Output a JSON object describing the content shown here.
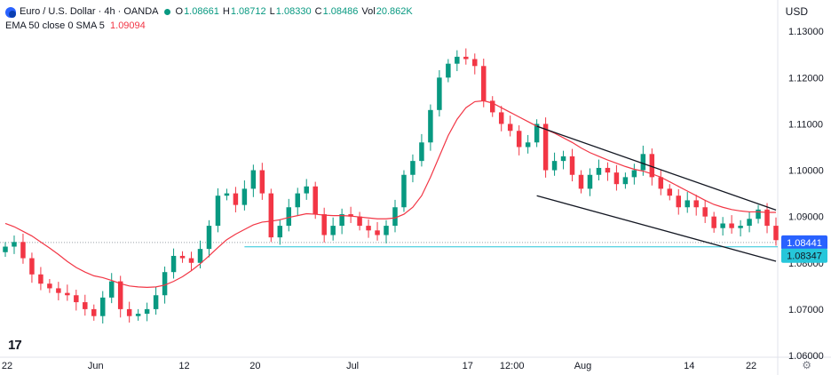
{
  "header": {
    "symbol": "Euro / U.S. Dollar · 4h · OANDA",
    "o_label": "O",
    "o_value": "1.08661",
    "h_label": "H",
    "h_value": "1.08712",
    "l_label": "L",
    "l_value": "1.08330",
    "c_label": "C",
    "c_value": "1.08486",
    "vol_label": "Vol",
    "vol_value": "20.862K",
    "indicator": "EMA 50 close 0 SMA 5",
    "indicator_value": "1.09094"
  },
  "currency": "USD",
  "colors": {
    "up": "#089981",
    "down": "#f23645",
    "ema": "#f23645",
    "channel": "#131722",
    "support": "#26c6da",
    "price_badge": "#2962ff",
    "support_badge": "#26c6da"
  },
  "chart_data": {
    "type": "candlestick",
    "symbol": "EURUSD",
    "timeframe": "4h",
    "x_ticks": [
      {
        "label": "22",
        "pos": 0
      },
      {
        "label": "Jun",
        "pos": 10
      },
      {
        "label": "12",
        "pos": 20
      },
      {
        "label": "20",
        "pos": 28
      },
      {
        "label": "Jul",
        "pos": 39
      },
      {
        "label": "17",
        "pos": 52
      },
      {
        "label": "12:00",
        "pos": 57
      },
      {
        "label": "Aug",
        "pos": 65
      },
      {
        "label": "14",
        "pos": 77
      },
      {
        "label": "22",
        "pos": 84
      }
    ],
    "y_ticks": [
      "1.06000",
      "1.07000",
      "1.08000",
      "1.09000",
      "1.10000",
      "1.11000",
      "1.12000",
      "1.13000"
    ],
    "ylim": [
      1.06,
      1.131
    ],
    "x_count": 88,
    "closes": [
      1.0835,
      1.0845,
      1.081,
      1.0775,
      1.0755,
      1.0745,
      1.0735,
      1.073,
      1.0715,
      1.07,
      1.0685,
      1.0725,
      1.076,
      1.07,
      1.0685,
      1.069,
      1.07,
      1.073,
      1.078,
      1.0815,
      1.081,
      1.08,
      1.083,
      1.088,
      1.0945,
      1.095,
      1.0925,
      1.096,
      1.1,
      1.095,
      1.0855,
      1.088,
      1.092,
      1.095,
      1.0965,
      1.0905,
      1.086,
      1.088,
      1.0905,
      1.09,
      1.088,
      1.087,
      1.086,
      1.088,
      1.092,
      1.099,
      1.102,
      1.106,
      1.113,
      1.12,
      1.123,
      1.1245,
      1.124,
      1.1225,
      1.115,
      1.1125,
      1.11,
      1.1085,
      1.105,
      1.106,
      1.11,
      1.1,
      1.102,
      1.103,
      1.099,
      1.096,
      1.099,
      1.1005,
      1.0995,
      1.097,
      1.0985,
      1.1,
      1.1035,
      1.0985,
      1.096,
      1.0945,
      1.092,
      1.0935,
      1.092,
      1.09,
      1.0875,
      1.0885,
      1.0875,
      1.088,
      1.0895,
      1.0915,
      1.088,
      1.0849
    ],
    "ema": [
      1.0885,
      1.0878,
      1.0868,
      1.0858,
      1.0845,
      1.0832,
      1.0818,
      1.0803,
      1.079,
      1.078,
      1.0772,
      1.0768,
      1.0762,
      1.0755,
      1.075,
      1.0748,
      1.0747,
      1.0748,
      1.0752,
      1.076,
      1.077,
      1.0783,
      1.0798,
      1.0815,
      1.0833,
      1.085,
      1.0862,
      1.0872,
      1.0882,
      1.0888,
      1.089,
      1.0893,
      1.0898,
      1.0902,
      1.0906,
      1.0905,
      1.0903,
      1.0902,
      1.0902,
      1.0901,
      1.0899,
      1.0897,
      1.0895,
      1.0895,
      1.0897,
      1.0905,
      1.092,
      1.0945,
      1.0985,
      1.103,
      1.1075,
      1.111,
      1.1135,
      1.1148,
      1.115,
      1.1145,
      1.1135,
      1.1125,
      1.1115,
      1.1105,
      1.1095,
      1.1088,
      1.108,
      1.107,
      1.106,
      1.1048,
      1.1038,
      1.103,
      1.1022,
      1.1015,
      1.1008,
      1.1002,
      1.0998,
      1.0992,
      1.0985,
      1.0975,
      1.0965,
      1.0955,
      1.0945,
      1.0935,
      1.0926,
      1.092,
      1.0915,
      1.0912,
      1.091,
      1.091,
      1.0909,
      1.0909
    ],
    "channel_upper": {
      "x1": 60,
      "y1": 1.1095,
      "x2": 85,
      "y2": 1.0915
    },
    "channel_lower": {
      "x1": 60,
      "y1": 1.0945,
      "x2": 85,
      "y2": 1.0815
    },
    "support_level": 1.08347,
    "current_price_label": "1.08441",
    "support_label": "1.08347",
    "current_price_value": 1.0844
  },
  "ui": {
    "tv_logo": "17"
  }
}
